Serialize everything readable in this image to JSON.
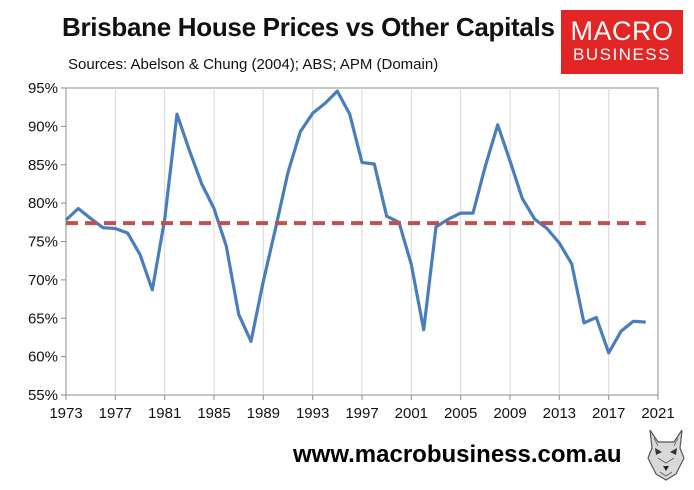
{
  "header": {
    "title": "Brisbane House Prices vs Other Capitals",
    "subtitle": "Sources: Abelson & Chung (2004); ABS; APM (Domain)"
  },
  "logo": {
    "line1": "MACRO",
    "line2": "BUSINESS",
    "background": "#e22626"
  },
  "footer": {
    "url": "www.macrobusiness.com.au",
    "icon": "wolf-logo-icon"
  },
  "chart_data": {
    "type": "line",
    "title": "Brisbane House Prices vs Other Capitals",
    "xlabel": "",
    "ylabel": "",
    "xlim": [
      1973,
      2021
    ],
    "ylim": [
      55,
      95
    ],
    "x_ticks": [
      1973,
      1977,
      1981,
      1985,
      1989,
      1993,
      1997,
      2001,
      2005,
      2009,
      2013,
      2017,
      2021
    ],
    "y_ticks": [
      55,
      60,
      65,
      70,
      75,
      80,
      85,
      90,
      95
    ],
    "y_tick_labels": [
      "55%",
      "60%",
      "65%",
      "70%",
      "75%",
      "80%",
      "85%",
      "90%",
      "95%"
    ],
    "grid": "vertical",
    "legend": "none",
    "series": [
      {
        "style": "solid",
        "color": "#4a7ebb",
        "x": [
          1973,
          1974,
          1975,
          1976,
          1977,
          1978,
          1979,
          1980,
          1981,
          1982,
          1983,
          1984,
          1985,
          1986,
          1987,
          1988,
          1989,
          1990,
          1991,
          1992,
          1993,
          1994,
          1995,
          1996,
          1997,
          1998,
          1999,
          2000,
          2001,
          2002,
          2003,
          2004,
          2005,
          2006,
          2007,
          2008,
          2009,
          2010,
          2011,
          2012,
          2013,
          2014,
          2015,
          2016,
          2017,
          2018,
          2019,
          2020
        ],
        "values": [
          77.8,
          79.3,
          78.0,
          76.8,
          76.7,
          76.1,
          73.3,
          68.7,
          77.9,
          91.6,
          86.9,
          82.5,
          79.3,
          74.4,
          65.5,
          62.0,
          69.8,
          76.8,
          84.0,
          89.3,
          91.7,
          93.0,
          94.6,
          91.6,
          85.3,
          85.1,
          78.3,
          77.5,
          72.0,
          63.5,
          76.9,
          77.9,
          78.7,
          78.7,
          84.8,
          90.2,
          85.5,
          80.6,
          77.9,
          76.7,
          74.8,
          72.1,
          64.4,
          65.1,
          60.5,
          63.3,
          64.6,
          64.5
        ]
      },
      {
        "style": "dashed",
        "color": "#c0504d",
        "x": [
          1973,
          2020
        ],
        "values": [
          77.4,
          77.4
        ]
      }
    ]
  }
}
